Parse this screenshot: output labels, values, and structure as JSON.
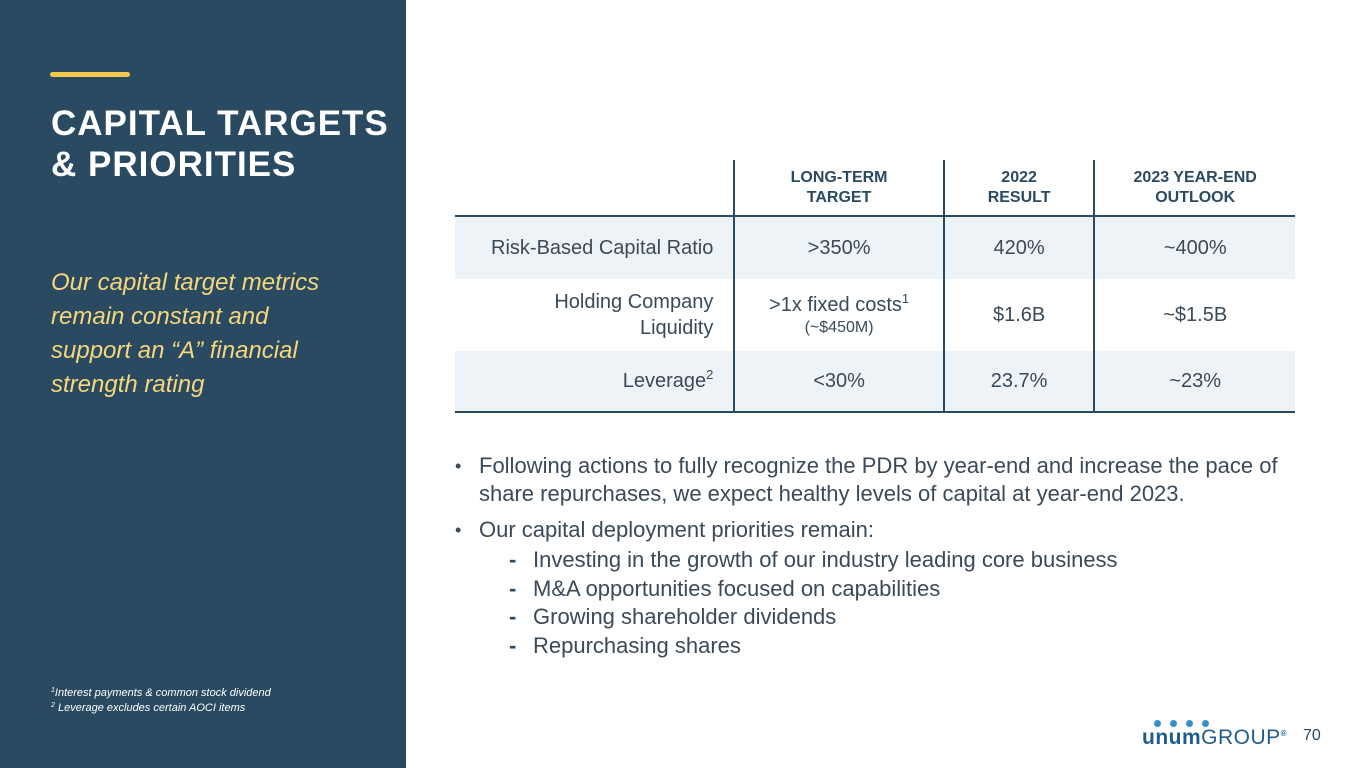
{
  "sidebar": {
    "title_line1": "CAPITAL TARGETS",
    "title_line2": "& PRIORITIES",
    "tagline": "Our capital target metrics remain constant and support an “A” financial strength rating",
    "footnote1_marker": "1",
    "footnote1_text": "Interest payments & common stock dividend",
    "footnote2_marker": "2",
    "footnote2_text": " Leverage excludes certain AOCI items"
  },
  "table": {
    "headers": {
      "long_term_line1": "LONG-TERM",
      "long_term_line2": "TARGET",
      "result_line1": "2022",
      "result_line2": "RESULT",
      "outlook_line1": "2023 YEAR-END",
      "outlook_line2": "OUTLOOK"
    },
    "rows": [
      {
        "label": "Risk-Based Capital Ratio",
        "target": ">350%",
        "result": "420%",
        "outlook": "~400%"
      },
      {
        "label_line1": "Holding Company",
        "label_line2": "Liquidity",
        "target": ">1x fixed costs",
        "target_footnote": "1",
        "target_note": "(~$450M)",
        "result": "$1.6B",
        "outlook": "~$1.5B"
      },
      {
        "label": "Leverage",
        "label_footnote": "2",
        "target": "<30%",
        "result": "23.7%",
        "outlook": "~23%"
      }
    ]
  },
  "bullets": {
    "b1": "Following actions to fully recognize the PDR by year-end and increase the pace of share repurchases, we expect healthy levels of capital at year-end 2023.",
    "b2": "Our capital deployment priorities remain:",
    "subs": [
      "Investing in the growth of our industry leading core business",
      "M&A opportunities focused on capabilities",
      "Growing shareholder dividends",
      "Repurchasing shares"
    ]
  },
  "logo": {
    "brand": "unum",
    "group": "GROUP",
    "reg": "®"
  },
  "page_number": "70",
  "colors": {
    "sidebar_bg": "#2a4a61",
    "accent": "#f2c94c",
    "tagline": "#f5d67c",
    "row_shade": "#eef3f7",
    "logo_blue": "#1f5d8d"
  }
}
